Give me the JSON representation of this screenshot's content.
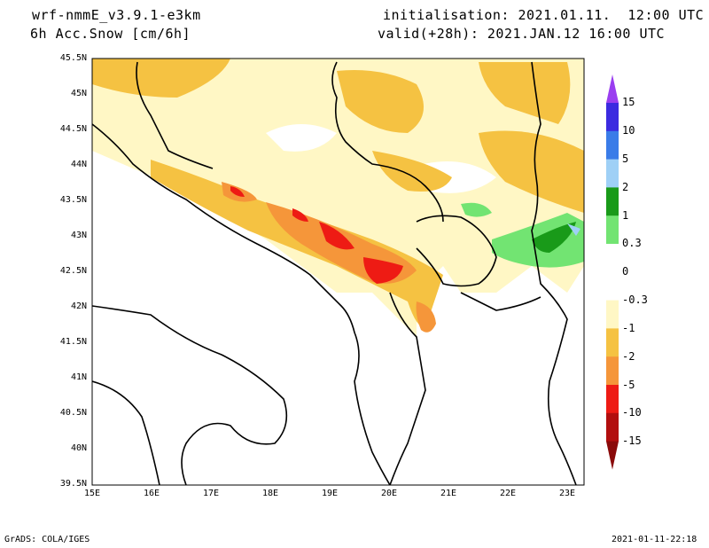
{
  "header": {
    "model": "wrf-nmmE_v3.9.1-e3km",
    "field": "6h Acc.Snow [cm/6h]",
    "initialisation": "initialisation: 2021.01.11.  12:00 UTC",
    "valid": "valid(+28h): 2021.JAN.12 16:00 UTC"
  },
  "map": {
    "lat_labels": [
      "45.5N",
      "45N",
      "44.5N",
      "44N",
      "43.5N",
      "43N",
      "42.5N",
      "42N",
      "41.5N",
      "41N",
      "40.5N",
      "40N",
      "39.5N"
    ],
    "lon_labels": [
      "15E",
      "16E",
      "17E",
      "18E",
      "19E",
      "20E",
      "21E",
      "22E",
      "23E"
    ],
    "extent": {
      "lon": [
        15,
        23.3
      ],
      "lat": [
        39.5,
        45.5
      ]
    }
  },
  "colorbar": {
    "labels": [
      "15",
      "10",
      "5",
      "2",
      "1",
      "0.3",
      "0",
      "-0.3",
      "-1",
      "-2",
      "-5",
      "-10",
      "-15"
    ],
    "colors": [
      "#3b2be0",
      "#3a7ce8",
      "#9fd0f6",
      "#199a19",
      "#72e472",
      "#ffffff",
      "#ffffff",
      "#fff7c5",
      "#f5c242",
      "#f5963a",
      "#ee1b14",
      "#b20e0e"
    ],
    "top_arrow_color": "#9a3ef0",
    "bottom_arrow_color": "#8a0a0a"
  },
  "footer": {
    "left": "GrADS: COLA/IGES",
    "right": "2021-01-11-22:18"
  }
}
